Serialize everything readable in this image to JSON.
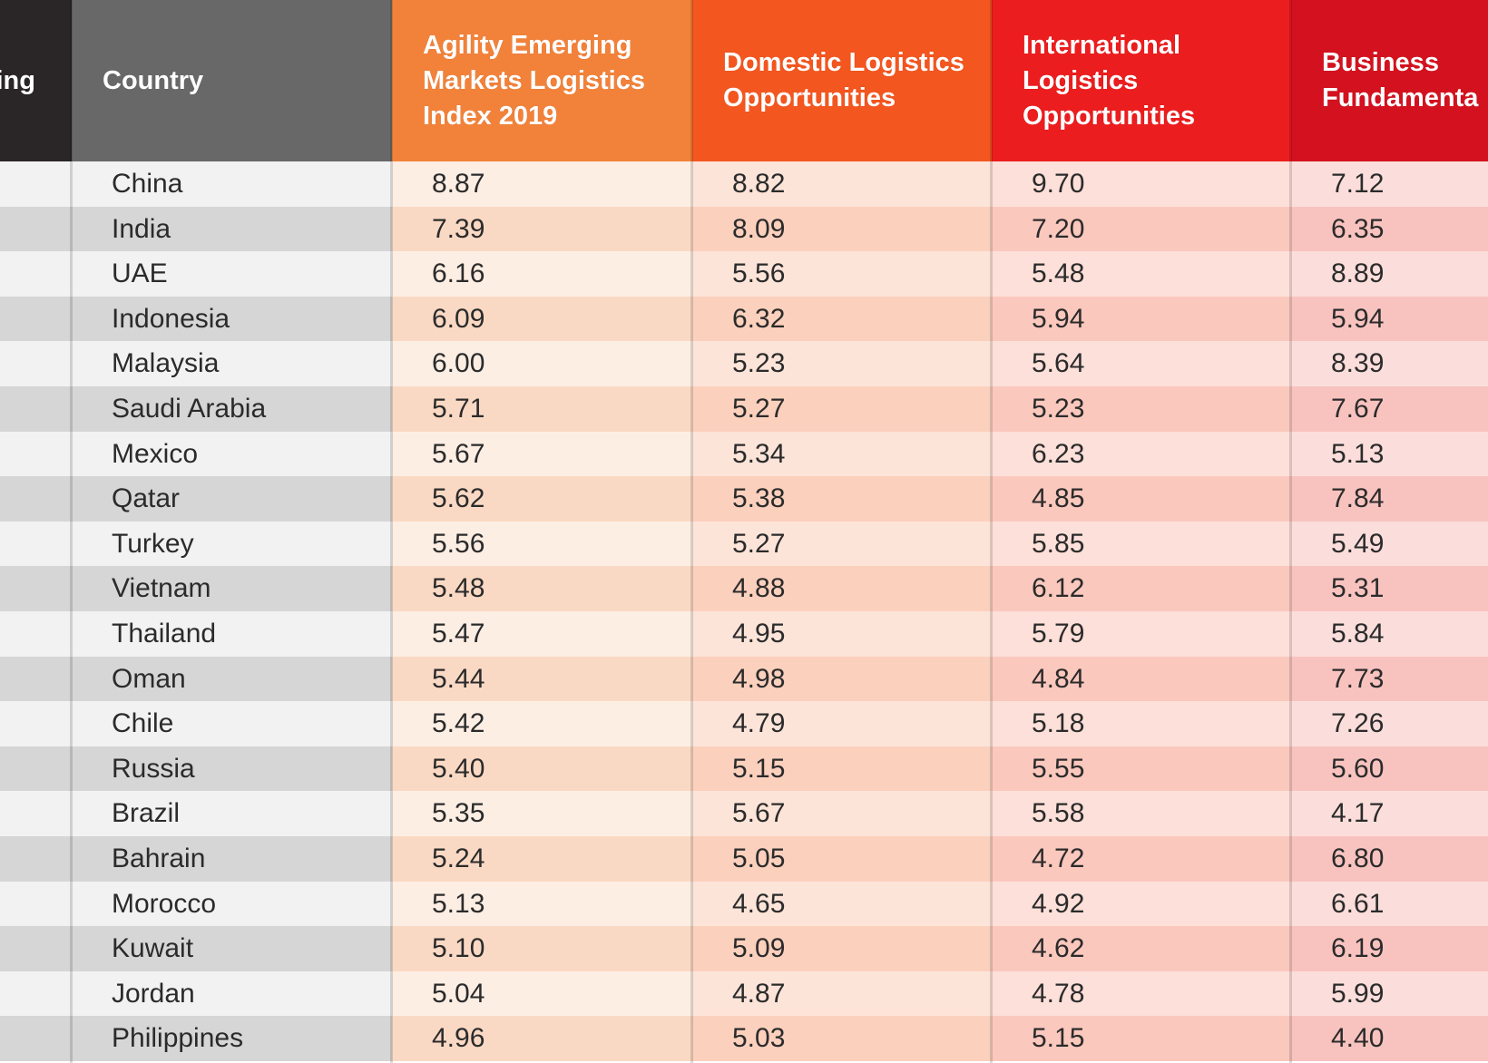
{
  "chart_data": {
    "type": "table",
    "columns": [
      {
        "key": "ranking",
        "label": "ing"
      },
      {
        "key": "country",
        "label": "Country"
      },
      {
        "key": "index",
        "label": "Agility Emerging Markets Logistics Index 2019"
      },
      {
        "key": "domestic",
        "label": "Domestic Logistics Opportunities"
      },
      {
        "key": "international",
        "label": "International Logistics Opportunities"
      },
      {
        "key": "business",
        "label": "Business Fundamenta"
      }
    ],
    "header_colors": [
      "#2a2526",
      "#686868",
      "#f2823a",
      "#f4561f",
      "#ec1d1e",
      "#d4121f"
    ],
    "rows": [
      {
        "country": "China",
        "index": "8.87",
        "domestic": "8.82",
        "international": "9.70",
        "business": "7.12"
      },
      {
        "country": "India",
        "index": "7.39",
        "domestic": "8.09",
        "international": "7.20",
        "business": "6.35"
      },
      {
        "country": "UAE",
        "index": "6.16",
        "domestic": "5.56",
        "international": "5.48",
        "business": "8.89"
      },
      {
        "country": "Indonesia",
        "index": "6.09",
        "domestic": "6.32",
        "international": "5.94",
        "business": "5.94"
      },
      {
        "country": "Malaysia",
        "index": "6.00",
        "domestic": "5.23",
        "international": "5.64",
        "business": "8.39"
      },
      {
        "country": "Saudi Arabia",
        "index": "5.71",
        "domestic": "5.27",
        "international": "5.23",
        "business": "7.67"
      },
      {
        "country": "Mexico",
        "index": "5.67",
        "domestic": "5.34",
        "international": "6.23",
        "business": "5.13"
      },
      {
        "country": "Qatar",
        "index": "5.62",
        "domestic": "5.38",
        "international": "4.85",
        "business": "7.84"
      },
      {
        "country": "Turkey",
        "index": "5.56",
        "domestic": "5.27",
        "international": "5.85",
        "business": "5.49"
      },
      {
        "country": "Vietnam",
        "index": "5.48",
        "domestic": "4.88",
        "international": "6.12",
        "business": "5.31"
      },
      {
        "country": "Thailand",
        "index": "5.47",
        "domestic": "4.95",
        "international": "5.79",
        "business": "5.84"
      },
      {
        "country": "Oman",
        "index": "5.44",
        "domestic": "4.98",
        "international": "4.84",
        "business": "7.73"
      },
      {
        "country": "Chile",
        "index": "5.42",
        "domestic": "4.79",
        "international": "5.18",
        "business": "7.26"
      },
      {
        "country": "Russia",
        "index": "5.40",
        "domestic": "5.15",
        "international": "5.55",
        "business": "5.60"
      },
      {
        "country": "Brazil",
        "index": "5.35",
        "domestic": "5.67",
        "international": "5.58",
        "business": "4.17"
      },
      {
        "country": "Bahrain",
        "index": "5.24",
        "domestic": "5.05",
        "international": "4.72",
        "business": "6.80"
      },
      {
        "country": "Morocco",
        "index": "5.13",
        "domestic": "4.65",
        "international": "4.92",
        "business": "6.61"
      },
      {
        "country": "Kuwait",
        "index": "5.10",
        "domestic": "5.09",
        "international": "4.62",
        "business": "6.19"
      },
      {
        "country": "Jordan",
        "index": "5.04",
        "domestic": "4.87",
        "international": "4.78",
        "business": "5.99"
      },
      {
        "country": "Philippines",
        "index": "4.96",
        "domestic": "5.03",
        "international": "5.15",
        "business": "4.40"
      }
    ],
    "row_stripe_colors": {
      "light": [
        "#f2f2f2",
        "#f2f2f2",
        "#fdeee4",
        "#fde4d9",
        "#fde0d9",
        "#fbdedb"
      ],
      "dark": [
        "#d6d6d6",
        "#d6d6d6",
        "#fad9c4",
        "#fbd0bd",
        "#fbc8bd",
        "#f8c3bf"
      ]
    }
  }
}
